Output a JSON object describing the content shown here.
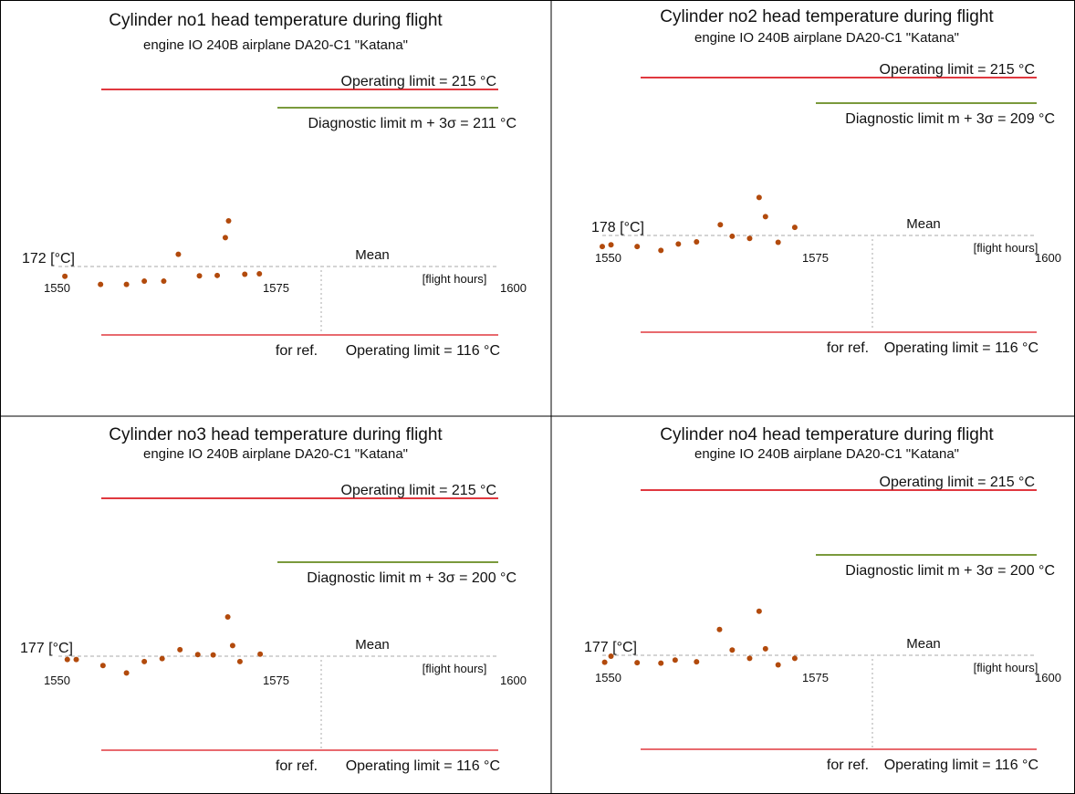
{
  "colors": {
    "operating_line": "#e0383f",
    "diagnostic_line": "#7a9a3c",
    "marker": "#b24a0c",
    "frame": "#000000",
    "dashed": "#aaaaaa"
  },
  "labels": {
    "mean": "Mean",
    "xlabel": "[flight hours]",
    "for_ref": "for ref.",
    "operating_low": "Operating limit = 116 °C"
  },
  "chart_data": [
    {
      "type": "scatter",
      "title": "Cylinder no1 head temperature during flight",
      "subtitle": "engine IO 240B airplane DA20-C1 \"Katana\"",
      "xlabel": "[flight hours]",
      "ylabel": "",
      "mean_label": "172 [°C]",
      "mean_value": 172,
      "operating_limit_high_label": "Operating limit = 215 °C",
      "operating_limit_high": 215,
      "diagnostic_limit_label": "Diagnostic limit  m + 3σ = 211 °C",
      "diagnostic_limit": 211,
      "operating_limit_low_label": "Operating limit = 116 °C",
      "operating_limit_low": 116,
      "x_ticks": [
        "1550",
        "1575",
        "1600"
      ],
      "xlim": [
        1550,
        1600
      ],
      "points": [
        {
          "x": 1550.8,
          "y": 169.6
        },
        {
          "x": 1555.2,
          "y": 167.6
        },
        {
          "x": 1558.4,
          "y": 167.6
        },
        {
          "x": 1560.6,
          "y": 168.4
        },
        {
          "x": 1563.0,
          "y": 168.4
        },
        {
          "x": 1564.8,
          "y": 175.0
        },
        {
          "x": 1567.4,
          "y": 169.7
        },
        {
          "x": 1569.6,
          "y": 169.8
        },
        {
          "x": 1570.6,
          "y": 179.1
        },
        {
          "x": 1571.0,
          "y": 183.2
        },
        {
          "x": 1573.0,
          "y": 170.1
        },
        {
          "x": 1574.8,
          "y": 170.2
        }
      ]
    },
    {
      "type": "scatter",
      "title": "Cylinder no2 head temperature during flight",
      "subtitle": "engine IO 240B airplane DA20-C1 \"Katana\"",
      "xlabel": "[flight hours]",
      "ylabel": "",
      "mean_label": "178 [°C]",
      "mean_value": 178,
      "operating_limit_high_label": "Operating limit = 215 °C",
      "operating_limit_high": 215,
      "diagnostic_limit_label": "Diagnostic limit  m + 3σ = 209 °C",
      "diagnostic_limit": 209,
      "operating_limit_low_label": "Operating limit = 116 °C",
      "operating_limit_low": 116,
      "x_ticks": [
        "1550",
        "1575",
        "1600"
      ],
      "xlim": [
        1550,
        1600
      ],
      "points": [
        {
          "x": 1550.0,
          "y": 175.4
        },
        {
          "x": 1551.1,
          "y": 175.8
        },
        {
          "x": 1554.4,
          "y": 175.4
        },
        {
          "x": 1557.4,
          "y": 174.5
        },
        {
          "x": 1559.6,
          "y": 176.0
        },
        {
          "x": 1561.9,
          "y": 176.5
        },
        {
          "x": 1564.9,
          "y": 180.5
        },
        {
          "x": 1566.4,
          "y": 177.8
        },
        {
          "x": 1568.6,
          "y": 177.3
        },
        {
          "x": 1569.8,
          "y": 186.9
        },
        {
          "x": 1570.6,
          "y": 182.4
        },
        {
          "x": 1572.2,
          "y": 176.4
        },
        {
          "x": 1574.3,
          "y": 179.9
        }
      ]
    },
    {
      "type": "scatter",
      "title": "Cylinder no3 head temperature during flight",
      "subtitle": "engine IO 240B airplane DA20-C1 \"Katana\"",
      "xlabel": "[flight hours]",
      "ylabel": "",
      "mean_label": "177 [°C]",
      "mean_value": 177,
      "operating_limit_high_label": "Operating limit = 215 °C",
      "operating_limit_high": 215,
      "diagnostic_limit_label": "Diagnostic limit  m + 3σ = 200 °C",
      "diagnostic_limit": 200,
      "operating_limit_low_label": "Operating limit = 116 °C",
      "operating_limit_low": 116,
      "x_ticks": [
        "1550",
        "1575",
        "1600"
      ],
      "xlim": [
        1550,
        1600
      ],
      "points": [
        {
          "x": 1551.1,
          "y": 176.2
        },
        {
          "x": 1552.2,
          "y": 176.2
        },
        {
          "x": 1555.5,
          "y": 174.7
        },
        {
          "x": 1558.4,
          "y": 172.9
        },
        {
          "x": 1560.6,
          "y": 175.7
        },
        {
          "x": 1562.8,
          "y": 176.4
        },
        {
          "x": 1565.0,
          "y": 178.6
        },
        {
          "x": 1567.2,
          "y": 177.4
        },
        {
          "x": 1569.1,
          "y": 177.3
        },
        {
          "x": 1570.9,
          "y": 186.6
        },
        {
          "x": 1571.5,
          "y": 179.6
        },
        {
          "x": 1572.4,
          "y": 175.7
        },
        {
          "x": 1574.9,
          "y": 177.5
        }
      ]
    },
    {
      "type": "scatter",
      "title": "Cylinder no4 head temperature during flight",
      "subtitle": "engine IO 240B airplane DA20-C1 \"Katana\"",
      "xlabel": "[flight hours]",
      "ylabel": "",
      "mean_label": "177 [°C]",
      "mean_value": 177,
      "operating_limit_high_label": "Operating limit = 215 °C",
      "operating_limit_high": 215,
      "diagnostic_limit_label": "Diagnostic limit  m + 3σ = 200 °C",
      "diagnostic_limit": 200,
      "operating_limit_low_label": "Operating limit = 116 °C",
      "operating_limit_low": 116,
      "x_ticks": [
        "1550",
        "1575",
        "1600"
      ],
      "xlim": [
        1550,
        1600
      ],
      "points": [
        {
          "x": 1550.3,
          "y": 175.4
        },
        {
          "x": 1551.1,
          "y": 176.8
        },
        {
          "x": 1554.4,
          "y": 175.3
        },
        {
          "x": 1557.4,
          "y": 175.2
        },
        {
          "x": 1559.2,
          "y": 175.9
        },
        {
          "x": 1561.9,
          "y": 175.5
        },
        {
          "x": 1564.8,
          "y": 182.9
        },
        {
          "x": 1566.4,
          "y": 178.2
        },
        {
          "x": 1568.6,
          "y": 176.3
        },
        {
          "x": 1569.8,
          "y": 187.1
        },
        {
          "x": 1570.6,
          "y": 178.5
        },
        {
          "x": 1572.2,
          "y": 174.8
        },
        {
          "x": 1574.3,
          "y": 176.3
        }
      ]
    }
  ]
}
